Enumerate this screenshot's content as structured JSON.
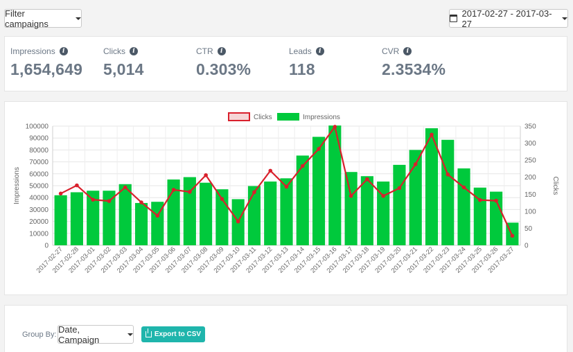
{
  "toolbar": {
    "filter_label": "Filter campaigns",
    "date_range": "2017-02-27 - 2017-03-27"
  },
  "stats": [
    {
      "label": "Impressions",
      "value": "1,654,649"
    },
    {
      "label": "Clicks",
      "value": "5,014"
    },
    {
      "label": "CTR",
      "value": "0.303%"
    },
    {
      "label": "Leads",
      "value": "118"
    },
    {
      "label": "CVR",
      "value": "2.3534%"
    }
  ],
  "footer": {
    "group_by_label": "Group By:",
    "group_by_value": "Date, Campaign",
    "export_label": "Export to CSV"
  },
  "colors": {
    "bar": "#00c93c",
    "line": "#d9202c",
    "accent": "#1fb5ac"
  },
  "chart_data": {
    "type": "bar",
    "categories": [
      "2017-02-27",
      "2017-02-28",
      "2017-03-01",
      "2017-03-02",
      "2017-03-03",
      "2017-03-04",
      "2017-03-05",
      "2017-03-06",
      "2017-03-07",
      "2017-03-08",
      "2017-03-09",
      "2017-03-10",
      "2017-03-11",
      "2017-03-12",
      "2017-03-13",
      "2017-03-14",
      "2017-03-15",
      "2017-03-16",
      "2017-03-17",
      "2017-03-18",
      "2017-03-19",
      "2017-03-20",
      "2017-03-21",
      "2017-03-22",
      "2017-03-23",
      "2017-03-24",
      "2017-03-25",
      "2017-03-26",
      "2017-03-27"
    ],
    "series": [
      {
        "name": "Impressions",
        "type": "bar",
        "axis": "left",
        "values": [
          42000,
          44500,
          45800,
          45800,
          51300,
          35500,
          36500,
          55200,
          57200,
          52500,
          47000,
          38700,
          49700,
          53500,
          56200,
          75300,
          91000,
          100500,
          61500,
          58000,
          53500,
          67500,
          80000,
          98200,
          88500,
          64500,
          48400,
          45000,
          19000
        ]
      },
      {
        "name": "Clicks",
        "type": "line",
        "axis": "right",
        "values": [
          152,
          176,
          134,
          130,
          170,
          126,
          87,
          163,
          157,
          206,
          136,
          70,
          156,
          219,
          172,
          233,
          283,
          348,
          145,
          194,
          145,
          168,
          238,
          325,
          208,
          170,
          133,
          131,
          28
        ]
      }
    ],
    "ylabel": "Impressions",
    "y2label": "Clicks",
    "ylim": [
      0,
      100000
    ],
    "y2lim": [
      0,
      350
    ],
    "yticks": [
      "0",
      "10000",
      "20000",
      "30000",
      "40000",
      "50000",
      "60000",
      "70000",
      "80000",
      "90000",
      "100000"
    ],
    "y2ticks": [
      "0",
      "50",
      "100",
      "150",
      "200",
      "250",
      "300",
      "350"
    ],
    "legend": "top-center",
    "grid": true
  }
}
